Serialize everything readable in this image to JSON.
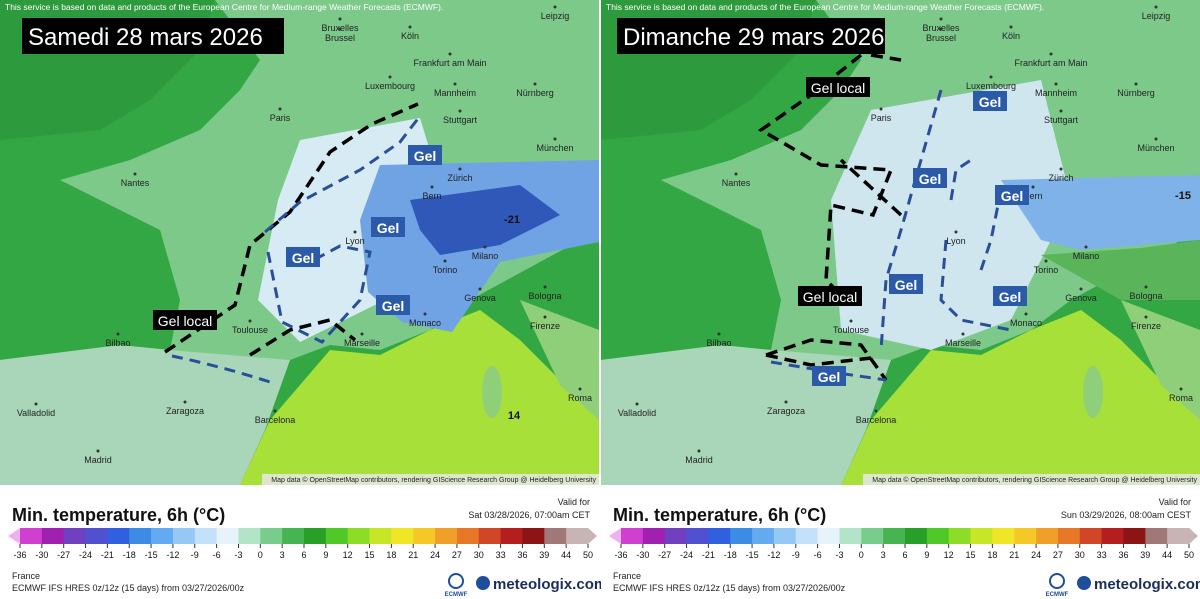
{
  "panels": [
    {
      "attribution": "This service is based on data and products of the European Centre for Medium-range Weather Forecasts (ECMWF).",
      "title": "Samedi 28 mars 2026",
      "cities": [
        "Bruxelles",
        "Brussel",
        "Köln",
        "Leipzig",
        "Frankfurt am Main",
        "Luxembourg",
        "Mannheim",
        "Nürnberg",
        "Paris",
        "Stuttgart",
        "München",
        "Nantes",
        "Zürich",
        "Bern",
        "Lyon",
        "Milano",
        "Torino",
        "Genova",
        "Bologna",
        "Firenze",
        "Monaco",
        "Marseille",
        "Toulouse",
        "Bilbao",
        "Valladolid",
        "Zaragoza",
        "Barcelona",
        "Madrid",
        "Roma"
      ],
      "annotations": [
        "Gel",
        "Gel",
        "Gel",
        "Gel",
        "Gel local"
      ],
      "isotherm_labels": [
        -21,
        14
      ],
      "map_credit": "Map data © OpenStreetMap contributors, rendering GIScience Research Group @ Heidelberg University",
      "legend": {
        "heading": "Min. temperature, 6h (°C)",
        "valid_label": "Valid for",
        "valid_time": "Sat 03/28/2026, 07:00am CET",
        "ticks": [
          -36,
          -30,
          -27,
          -24,
          -21,
          -18,
          -15,
          -12,
          -9,
          -6,
          -3,
          0,
          3,
          6,
          9,
          12,
          15,
          18,
          21,
          24,
          27,
          30,
          33,
          36,
          39,
          44,
          50
        ],
        "region": "France",
        "model": "ECMWF IFS HRES 0z/12z (15 days) from 03/27/2026/00z",
        "ecmwf": "ECMWF",
        "brand": "meteologix.com"
      }
    },
    {
      "attribution": "This service is based on data and products of the European Centre for Medium-range Weather Forecasts (ECMWF).",
      "title": "Dimanche 29 mars 2026",
      "cities": [
        "Bruxelles",
        "Brussel",
        "Köln",
        "Leipzig",
        "Frankfurt am Main",
        "Luxembourg",
        "Mannheim",
        "Nürnberg",
        "Paris",
        "Stuttgart",
        "München",
        "Nantes",
        "Zürich",
        "Bern",
        "Lyon",
        "Milano",
        "Torino",
        "Genova",
        "Bologna",
        "Firenze",
        "Monaco",
        "Marseille",
        "Toulouse",
        "Bilbao",
        "Valladolid",
        "Zaragoza",
        "Barcelona",
        "Madrid",
        "Roma"
      ],
      "annotations": [
        "Gel local",
        "Gel",
        "Gel",
        "Gel",
        "Gel local",
        "Gel",
        "Gel",
        "Gel"
      ],
      "isotherm_labels": [
        -15
      ],
      "map_credit": "Map data © OpenStreetMap contributors, rendering GIScience Research Group @ Heidelberg University",
      "legend": {
        "heading": "Min. temperature, 6h (°C)",
        "valid_label": "Valid for",
        "valid_time": "Sun 03/29/2026, 08:00am CEST",
        "ticks": [
          -36,
          -30,
          -27,
          -24,
          -21,
          -18,
          -15,
          -12,
          -9,
          -6,
          -3,
          0,
          3,
          6,
          9,
          12,
          15,
          18,
          21,
          24,
          27,
          30,
          33,
          36,
          39,
          44,
          50
        ],
        "region": "France",
        "model": "ECMWF IFS HRES 0z/12z (15 days) from 03/27/2026/00z",
        "ecmwf": "ECMWF",
        "brand": "meteologix.com"
      }
    }
  ]
}
